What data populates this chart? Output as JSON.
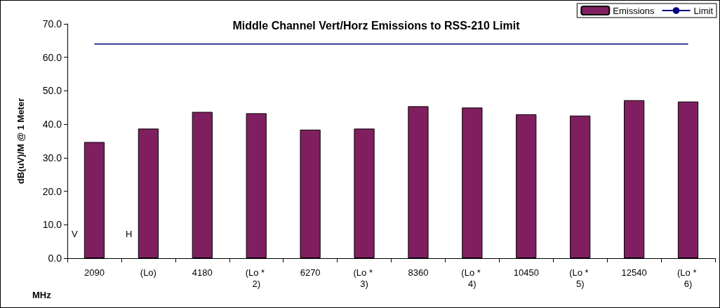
{
  "chart_data": {
    "type": "bar",
    "title": "Middle Channel Vert/Horz Emissions to RSS-210 Limit",
    "xlabel": "MHz",
    "ylabel": "dB(uV)/M @ 1 Meter",
    "categories": [
      "2090",
      "(Lo)",
      "4180",
      "(Lo * 2)",
      "6270",
      "(Lo * 3)",
      "8360",
      "(Lo * 4)",
      "10450",
      "(Lo * 5)",
      "12540",
      "(Lo * 6)"
    ],
    "series": [
      {
        "name": "Emissions",
        "color": "#801f60",
        "values": [
          34.7,
          38.7,
          43.7,
          43.3,
          38.4,
          38.7,
          45.4,
          45.0,
          43.0,
          42.6,
          47.2,
          46.8
        ]
      },
      {
        "name": "Limit",
        "type": "line",
        "color": "#000080",
        "values": [
          64.0,
          64.0,
          64.0,
          64.0,
          64.0,
          64.0,
          64.0,
          64.0,
          64.0,
          64.0,
          64.0,
          64.0
        ]
      }
    ],
    "ylim": [
      0,
      70
    ],
    "yticks": [
      {
        "value": 0,
        "label": "0.0"
      },
      {
        "value": 10,
        "label": "10.0"
      },
      {
        "value": 20,
        "label": "20.0"
      },
      {
        "value": 30,
        "label": "30.0"
      },
      {
        "value": 40,
        "label": "40.0"
      },
      {
        "value": 50,
        "label": "50.0"
      },
      {
        "value": 60,
        "label": "60.0"
      },
      {
        "value": 70,
        "label": "70.0"
      }
    ],
    "annotations": [
      "V",
      "H"
    ],
    "grid": false,
    "legend": "top right",
    "marker": "none",
    "line_style": "solid"
  }
}
